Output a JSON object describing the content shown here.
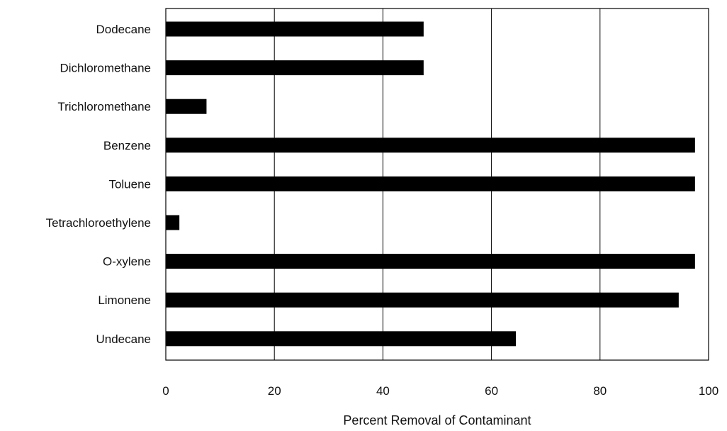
{
  "chart_data": {
    "type": "bar",
    "orientation": "horizontal",
    "title": "",
    "xlabel": "Percent Removal of Contaminant",
    "ylabel": "",
    "xlim": [
      0,
      100
    ],
    "x_ticks": [
      0,
      20,
      40,
      60,
      80,
      100
    ],
    "grid": "vertical",
    "legend": "none",
    "categories": [
      "Dodecane",
      "Dichloromethane",
      "Trichloromethane",
      "Benzene",
      "Toluene",
      "Tetrachloroethylene",
      "O-xylene",
      "Limonene",
      "Undecane"
    ],
    "values": [
      47.5,
      47.5,
      7.5,
      97.5,
      97.5,
      2.5,
      97.5,
      94.5,
      64.5
    ],
    "bar_color": "#000000"
  }
}
